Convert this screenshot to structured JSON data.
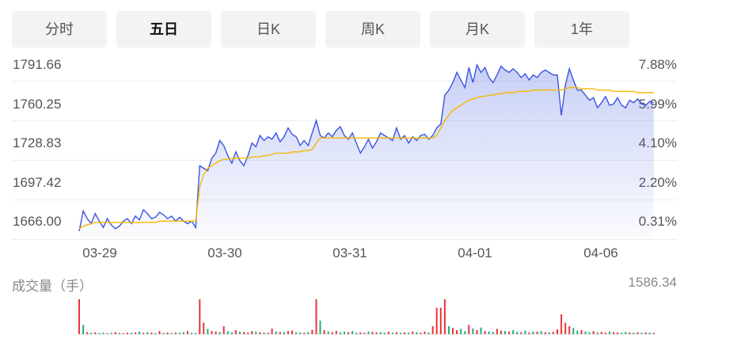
{
  "tabs": [
    {
      "label": "分时",
      "active": false
    },
    {
      "label": "五日",
      "active": true
    },
    {
      "label": "日K",
      "active": false
    },
    {
      "label": "周K",
      "active": false
    },
    {
      "label": "月K",
      "active": false
    },
    {
      "label": "1年",
      "active": false
    }
  ],
  "volume": {
    "title": "成交量（手）",
    "max_label": "1586.34"
  },
  "colors": {
    "price": "#3a55e0",
    "average": "#f5b800",
    "up": "#e8343a",
    "down": "#1fae7d",
    "grid": "#eeeeee"
  },
  "chart_data": {
    "type": "line",
    "y_tick_labels": [
      "1791.66",
      "1760.25",
      "1728.83",
      "1697.42",
      "1666.00"
    ],
    "y_tick_values": [
      1791.66,
      1760.25,
      1728.83,
      1697.42,
      1666.0
    ],
    "pct_tick_labels": [
      "7.88%",
      "5.99%",
      "4.10%",
      "2.20%",
      "0.31%"
    ],
    "x_tick_labels": [
      "03-29",
      "03-30",
      "03-31",
      "04-01",
      "04-06"
    ],
    "ylim": [
      1655.0,
      1792.0
    ],
    "days_total": 5,
    "series": [
      {
        "key": "price",
        "values": [
          1660,
          1676,
          1670,
          1666,
          1674,
          1668,
          1663,
          1670,
          1665,
          1662,
          1664,
          1668,
          1670,
          1666,
          1672,
          1669,
          1677,
          1674,
          1670,
          1671,
          1675,
          1673,
          1670,
          1672,
          1668,
          1671,
          1668,
          1666,
          1668,
          1663,
          1712,
          1710,
          1708,
          1718,
          1722,
          1732,
          1728,
          1720,
          1714,
          1723,
          1716,
          1712,
          1720,
          1730,
          1727,
          1736,
          1732,
          1735,
          1733,
          1738,
          1731,
          1735,
          1742,
          1737,
          1735,
          1728,
          1732,
          1728,
          1738,
          1748,
          1736,
          1734,
          1738,
          1735,
          1740,
          1743,
          1736,
          1733,
          1738,
          1730,
          1722,
          1727,
          1733,
          1726,
          1731,
          1738,
          1736,
          1734,
          1732,
          1742,
          1733,
          1736,
          1730,
          1735,
          1732,
          1736,
          1737,
          1733,
          1736,
          1742,
          1745,
          1768,
          1772,
          1778,
          1786,
          1780,
          1774,
          1790,
          1778,
          1792,
          1786,
          1790,
          1782,
          1778,
          1784,
          1791,
          1788,
          1786,
          1789,
          1786,
          1782,
          1785,
          1780,
          1784,
          1782,
          1786,
          1788,
          1786,
          1784,
          1784,
          1752,
          1776,
          1789,
          1780,
          1772,
          1772,
          1768,
          1764,
          1766,
          1758,
          1762,
          1767,
          1760,
          1761,
          1766,
          1760,
          1758,
          1764,
          1762,
          1765,
          1761,
          1760,
          1763,
          1762
        ]
      },
      {
        "key": "average",
        "values": [
          1662,
          1664,
          1665,
          1666,
          1667,
          1667,
          1667,
          1667,
          1667,
          1667,
          1667,
          1667,
          1667,
          1667,
          1667,
          1667,
          1667,
          1667,
          1667,
          1667,
          1668,
          1668,
          1668,
          1668,
          1668,
          1668,
          1668,
          1668,
          1668,
          1668,
          1695,
          1705,
          1710,
          1712,
          1714,
          1716,
          1717,
          1717,
          1718,
          1718,
          1718,
          1718,
          1718,
          1719,
          1719,
          1719,
          1720,
          1720,
          1721,
          1722,
          1722,
          1722,
          1722,
          1723,
          1723,
          1723,
          1724,
          1724,
          1725,
          1730,
          1734,
          1734,
          1734,
          1734,
          1734,
          1734,
          1734,
          1734,
          1734,
          1734,
          1734,
          1734,
          1734,
          1734,
          1734,
          1734,
          1734,
          1734,
          1734,
          1734,
          1734,
          1734,
          1734,
          1734,
          1734,
          1734,
          1734,
          1734,
          1734,
          1736,
          1742,
          1748,
          1752,
          1756,
          1758,
          1760,
          1762,
          1764,
          1765,
          1766,
          1767,
          1767,
          1768,
          1768,
          1769,
          1769,
          1770,
          1770,
          1770,
          1771,
          1771,
          1771,
          1771,
          1772,
          1772,
          1772,
          1772,
          1772,
          1772,
          1772,
          1772,
          1773,
          1774,
          1774,
          1774,
          1773,
          1773,
          1773,
          1773,
          1772,
          1772,
          1772,
          1772,
          1771,
          1771,
          1771,
          1771,
          1771,
          1771,
          1770,
          1770,
          1770,
          1770,
          1770
        ]
      }
    ],
    "volume_values": [
      1586,
      420,
      90,
      60,
      80,
      50,
      70,
      40,
      60,
      90,
      50,
      40,
      70,
      60,
      80,
      120,
      60,
      90,
      70,
      50,
      140,
      60,
      80,
      50,
      70,
      60,
      90,
      140,
      60,
      50,
      1586,
      520,
      240,
      140,
      120,
      90,
      360,
      130,
      80,
      180,
      110,
      100,
      70,
      140,
      120,
      90,
      80,
      60,
      260,
      120,
      100,
      90,
      140,
      160,
      80,
      70,
      60,
      90,
      200,
      1586,
      620,
      180,
      120,
      90,
      150,
      80,
      110,
      90,
      140,
      70,
      80,
      60,
      120,
      100,
      80,
      90,
      60,
      110,
      70,
      90,
      60,
      80,
      70,
      120,
      90,
      60,
      110,
      80,
      360,
      1200,
      1200,
      1586,
      360,
      280,
      180,
      240,
      140,
      420,
      260,
      190,
      300,
      140,
      120,
      100,
      240,
      160,
      140,
      120,
      180,
      100,
      90,
      160,
      80,
      120,
      110,
      140,
      90,
      80,
      100,
      220,
      900,
      520,
      360,
      280,
      160,
      180,
      120,
      90,
      140,
      80,
      100,
      70,
      120,
      90,
      80,
      60,
      100,
      80,
      70,
      90,
      60,
      80,
      70,
      60
    ],
    "volume_colors": [
      "up",
      "down",
      "up",
      "down",
      "up",
      "down",
      "down",
      "up",
      "down",
      "up",
      "down",
      "up",
      "up",
      "down",
      "up",
      "down",
      "up",
      "down",
      "up",
      "down",
      "up",
      "down",
      "up",
      "down",
      "up",
      "down",
      "down",
      "up",
      "down",
      "down",
      "up",
      "up",
      "down",
      "up",
      "up",
      "down",
      "up",
      "down",
      "down",
      "up",
      "down",
      "up",
      "up",
      "up",
      "down",
      "up",
      "down",
      "up",
      "up",
      "down",
      "up",
      "down",
      "up",
      "up",
      "down",
      "down",
      "up",
      "down",
      "up",
      "up",
      "down",
      "up",
      "down",
      "up",
      "up",
      "down",
      "down",
      "up",
      "down",
      "down",
      "up",
      "up",
      "down",
      "up",
      "up",
      "down",
      "down",
      "up",
      "down",
      "up",
      "down",
      "up",
      "down",
      "up",
      "down",
      "up",
      "up",
      "down",
      "up",
      "up",
      "up",
      "up",
      "down",
      "up",
      "up",
      "down",
      "down",
      "up",
      "down",
      "up",
      "down",
      "up",
      "down",
      "down",
      "up",
      "up",
      "down",
      "up",
      "down",
      "down",
      "up",
      "down",
      "up",
      "down",
      "up",
      "down",
      "up",
      "down",
      "up",
      "up",
      "up",
      "up",
      "up",
      "down",
      "down",
      "up",
      "down",
      "down",
      "up",
      "down",
      "up",
      "up",
      "down",
      "up",
      "up",
      "down",
      "down",
      "up",
      "down",
      "up",
      "down",
      "up",
      "down",
      "up"
    ]
  }
}
